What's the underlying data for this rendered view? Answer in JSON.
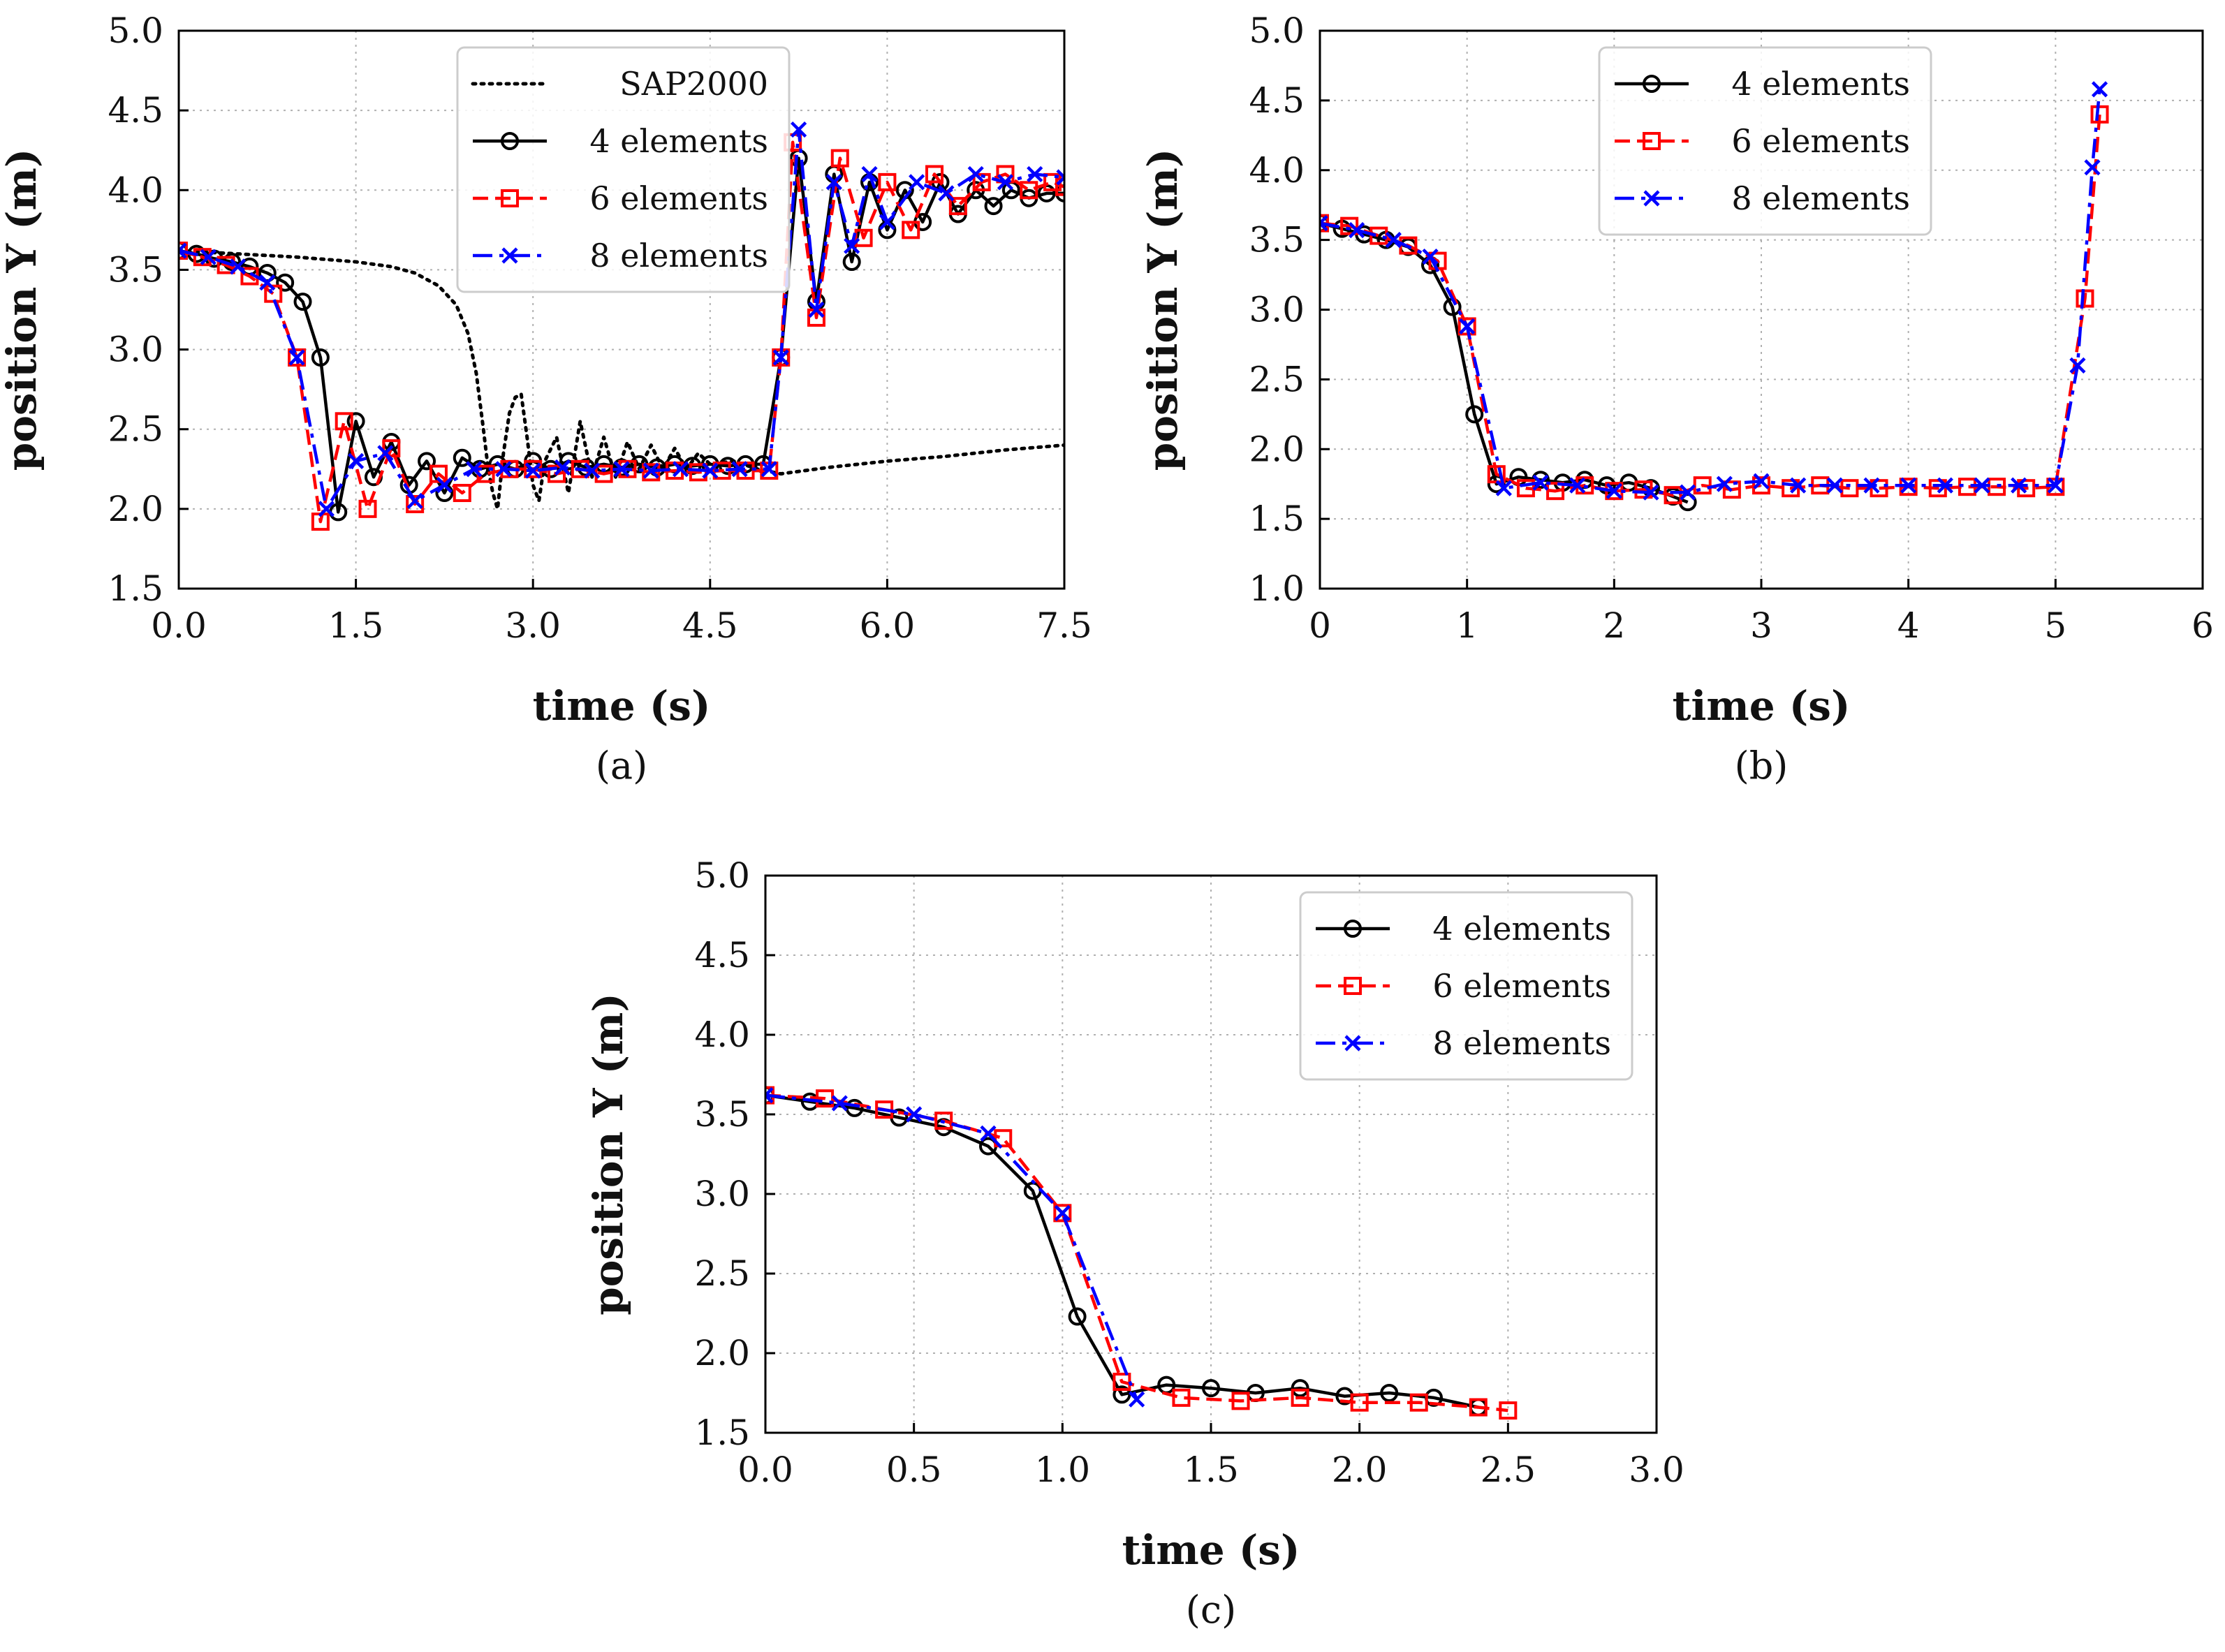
{
  "figure": {
    "captions": [
      "(a)",
      "(b)",
      "(c)"
    ]
  },
  "chart_data": [
    {
      "type": "line",
      "caption": "(a)",
      "xlabel": "time (s)",
      "ylabel": "position Y (m)",
      "xlim": [
        0.0,
        7.5
      ],
      "ylim": [
        1.5,
        5.0
      ],
      "xticks": [
        "0.0",
        "1.5",
        "3.0",
        "4.5",
        "6.0",
        "7.5"
      ],
      "yticks": [
        "1.5",
        "2.0",
        "2.5",
        "3.0",
        "3.5",
        "4.0",
        "4.5",
        "5.0"
      ],
      "grid": true,
      "legend_position": "top-center",
      "series": [
        {
          "name": "SAP2000",
          "color": "#000000",
          "style": "dotted",
          "marker": "none",
          "x": [
            0,
            0.5,
            1.0,
            1.5,
            1.8,
            2.0,
            2.2,
            2.35,
            2.45,
            2.52,
            2.58,
            2.62,
            2.66,
            2.7,
            2.75,
            2.8,
            2.85,
            2.9,
            2.95,
            3.0,
            3.05,
            3.1,
            3.2,
            3.3,
            3.4,
            3.5,
            3.6,
            3.7,
            3.8,
            3.9,
            4.0,
            4.1,
            4.2,
            4.3,
            4.4,
            4.5,
            4.7,
            4.9,
            5.1,
            5.5,
            6.0,
            6.5,
            7.0,
            7.5
          ],
          "y": [
            3.62,
            3.6,
            3.58,
            3.55,
            3.52,
            3.48,
            3.4,
            3.28,
            3.1,
            2.85,
            2.5,
            2.25,
            2.1,
            2.0,
            2.35,
            2.6,
            2.7,
            2.72,
            2.45,
            2.15,
            2.05,
            2.3,
            2.45,
            2.1,
            2.55,
            2.2,
            2.45,
            2.2,
            2.42,
            2.25,
            2.4,
            2.25,
            2.38,
            2.25,
            2.35,
            2.28,
            2.3,
            2.25,
            2.22,
            2.26,
            2.3,
            2.33,
            2.37,
            2.4
          ]
        },
        {
          "name": "4 elements",
          "color": "#000000",
          "style": "solid",
          "marker": "circle",
          "x": [
            0,
            0.15,
            0.3,
            0.45,
            0.6,
            0.75,
            0.9,
            1.05,
            1.2,
            1.35,
            1.5,
            1.65,
            1.8,
            1.95,
            2.1,
            2.25,
            2.4,
            2.55,
            2.7,
            2.85,
            3.0,
            3.15,
            3.3,
            3.45,
            3.6,
            3.75,
            3.9,
            4.05,
            4.2,
            4.35,
            4.5,
            4.65,
            4.8,
            4.95,
            5.1,
            5.25,
            5.4,
            5.55,
            5.7,
            5.85,
            6.0,
            6.15,
            6.3,
            6.45,
            6.6,
            6.75,
            6.9,
            7.05,
            7.2,
            7.35,
            7.5
          ],
          "y": [
            3.62,
            3.6,
            3.57,
            3.55,
            3.52,
            3.48,
            3.42,
            3.3,
            2.95,
            1.98,
            2.55,
            2.2,
            2.42,
            2.15,
            2.3,
            2.1,
            2.32,
            2.25,
            2.28,
            2.25,
            2.3,
            2.25,
            2.3,
            2.26,
            2.28,
            2.26,
            2.28,
            2.26,
            2.28,
            2.27,
            2.28,
            2.27,
            2.28,
            2.28,
            2.95,
            4.2,
            3.3,
            4.1,
            3.55,
            4.05,
            3.75,
            4.0,
            3.8,
            4.05,
            3.85,
            4.0,
            3.9,
            4.0,
            3.95,
            3.98,
            3.98
          ]
        },
        {
          "name": "6 elements",
          "color": "#ff0000",
          "style": "dashed",
          "marker": "square",
          "x": [
            0,
            0.2,
            0.4,
            0.6,
            0.8,
            1.0,
            1.2,
            1.4,
            1.6,
            1.8,
            2.0,
            2.2,
            2.4,
            2.6,
            2.8,
            3.0,
            3.2,
            3.4,
            3.6,
            3.8,
            4.0,
            4.2,
            4.4,
            4.6,
            4.8,
            5.0,
            5.1,
            5.2,
            5.4,
            5.6,
            5.8,
            6.0,
            6.2,
            6.4,
            6.6,
            6.8,
            7.0,
            7.2,
            7.4,
            7.5
          ],
          "y": [
            3.62,
            3.58,
            3.53,
            3.46,
            3.35,
            2.95,
            1.92,
            2.55,
            2.0,
            2.38,
            2.03,
            2.22,
            2.1,
            2.22,
            2.25,
            2.25,
            2.22,
            2.25,
            2.22,
            2.25,
            2.23,
            2.24,
            2.23,
            2.24,
            2.24,
            2.24,
            2.95,
            4.3,
            3.2,
            4.2,
            3.7,
            4.05,
            3.75,
            4.1,
            3.9,
            4.05,
            4.1,
            4.0,
            4.05,
            4.02
          ]
        },
        {
          "name": "8 elements",
          "color": "#0000ff",
          "style": "dashdot",
          "marker": "x",
          "x": [
            0,
            0.25,
            0.5,
            0.75,
            1.0,
            1.25,
            1.5,
            1.75,
            2.0,
            2.25,
            2.5,
            2.75,
            3.0,
            3.25,
            3.5,
            3.75,
            4.0,
            4.25,
            4.5,
            4.75,
            5.0,
            5.1,
            5.25,
            5.4,
            5.55,
            5.7,
            5.85,
            6.0,
            6.25,
            6.5,
            6.75,
            7.0,
            7.25,
            7.5
          ],
          "y": [
            3.62,
            3.58,
            3.52,
            3.42,
            2.95,
            2.0,
            2.3,
            2.35,
            2.05,
            2.15,
            2.25,
            2.25,
            2.24,
            2.26,
            2.24,
            2.25,
            2.24,
            2.25,
            2.24,
            2.25,
            2.25,
            2.95,
            4.38,
            3.25,
            4.05,
            3.65,
            4.1,
            3.8,
            4.05,
            3.98,
            4.1,
            4.05,
            4.1,
            4.08
          ]
        }
      ]
    },
    {
      "type": "line",
      "caption": "(b)",
      "xlabel": "time (s)",
      "ylabel": "position Y (m)",
      "xlim": [
        0,
        6
      ],
      "ylim": [
        1.0,
        5.0
      ],
      "xticks": [
        "0",
        "1",
        "2",
        "3",
        "4",
        "5",
        "6"
      ],
      "yticks": [
        "1.0",
        "1.5",
        "2.0",
        "2.5",
        "3.0",
        "3.5",
        "4.0",
        "4.5",
        "5.0"
      ],
      "grid": true,
      "legend_position": "top-center",
      "series": [
        {
          "name": "4 elements",
          "color": "#000000",
          "style": "solid",
          "marker": "circle",
          "x": [
            0,
            0.15,
            0.3,
            0.45,
            0.6,
            0.75,
            0.9,
            1.05,
            1.2,
            1.35,
            1.5,
            1.65,
            1.8,
            1.95,
            2.1,
            2.25,
            2.4,
            2.5
          ],
          "y": [
            3.62,
            3.58,
            3.54,
            3.5,
            3.45,
            3.32,
            3.02,
            2.25,
            1.75,
            1.8,
            1.78,
            1.76,
            1.78,
            1.74,
            1.76,
            1.72,
            1.66,
            1.62
          ]
        },
        {
          "name": "6 elements",
          "color": "#ff0000",
          "style": "dashed",
          "marker": "square",
          "x": [
            0,
            0.2,
            0.4,
            0.6,
            0.8,
            1.0,
            1.2,
            1.4,
            1.6,
            1.8,
            2.0,
            2.2,
            2.4,
            2.6,
            2.8,
            3.0,
            3.2,
            3.4,
            3.6,
            3.8,
            4.0,
            4.2,
            4.4,
            4.6,
            4.8,
            5.0,
            5.2,
            5.3
          ],
          "y": [
            3.62,
            3.6,
            3.53,
            3.46,
            3.35,
            2.88,
            1.82,
            1.72,
            1.7,
            1.74,
            1.7,
            1.71,
            1.67,
            1.74,
            1.71,
            1.74,
            1.72,
            1.74,
            1.72,
            1.72,
            1.73,
            1.72,
            1.73,
            1.73,
            1.72,
            1.73,
            3.08,
            4.4
          ]
        },
        {
          "name": "8 elements",
          "color": "#0000ff",
          "style": "dashdot",
          "marker": "x",
          "x": [
            0,
            0.25,
            0.5,
            0.75,
            1.0,
            1.25,
            1.5,
            1.75,
            2.0,
            2.25,
            2.5,
            2.75,
            3.0,
            3.25,
            3.5,
            3.75,
            4.0,
            4.25,
            4.5,
            4.75,
            5.0,
            5.15,
            5.25,
            5.3
          ],
          "y": [
            3.62,
            3.57,
            3.5,
            3.38,
            2.88,
            1.72,
            1.76,
            1.74,
            1.7,
            1.69,
            1.69,
            1.75,
            1.77,
            1.74,
            1.74,
            1.74,
            1.74,
            1.74,
            1.74,
            1.74,
            1.74,
            2.6,
            4.02,
            4.58
          ]
        }
      ]
    },
    {
      "type": "line",
      "caption": "(c)",
      "xlabel": "time (s)",
      "ylabel": "position Y (m)",
      "xlim": [
        0.0,
        3.0
      ],
      "ylim": [
        1.5,
        5.0
      ],
      "xticks": [
        "0.0",
        "0.5",
        "1.0",
        "1.5",
        "2.0",
        "2.5",
        "3.0"
      ],
      "yticks": [
        "1.5",
        "2.0",
        "2.5",
        "3.0",
        "3.5",
        "4.0",
        "4.5",
        "5.0"
      ],
      "grid": true,
      "legend_position": "top-right",
      "series": [
        {
          "name": "4 elements",
          "color": "#000000",
          "style": "solid",
          "marker": "circle",
          "x": [
            0,
            0.15,
            0.3,
            0.45,
            0.6,
            0.75,
            0.9,
            1.05,
            1.2,
            1.35,
            1.5,
            1.65,
            1.8,
            1.95,
            2.1,
            2.25,
            2.4
          ],
          "y": [
            3.62,
            3.58,
            3.54,
            3.48,
            3.42,
            3.3,
            3.02,
            2.23,
            1.74,
            1.8,
            1.78,
            1.75,
            1.78,
            1.73,
            1.75,
            1.72,
            1.66
          ]
        },
        {
          "name": "6 elements",
          "color": "#ff0000",
          "style": "dashed",
          "marker": "square",
          "x": [
            0,
            0.2,
            0.4,
            0.6,
            0.8,
            1.0,
            1.2,
            1.4,
            1.6,
            1.8,
            2.0,
            2.2,
            2.4,
            2.5
          ],
          "y": [
            3.62,
            3.6,
            3.53,
            3.46,
            3.35,
            2.88,
            1.82,
            1.72,
            1.7,
            1.72,
            1.69,
            1.69,
            1.66,
            1.64
          ]
        },
        {
          "name": "8 elements",
          "color": "#0000ff",
          "style": "dashdot",
          "marker": "x",
          "x": [
            0,
            0.25,
            0.5,
            0.75,
            1.0,
            1.25
          ],
          "y": [
            3.62,
            3.57,
            3.5,
            3.38,
            2.88,
            1.71
          ]
        }
      ]
    }
  ]
}
